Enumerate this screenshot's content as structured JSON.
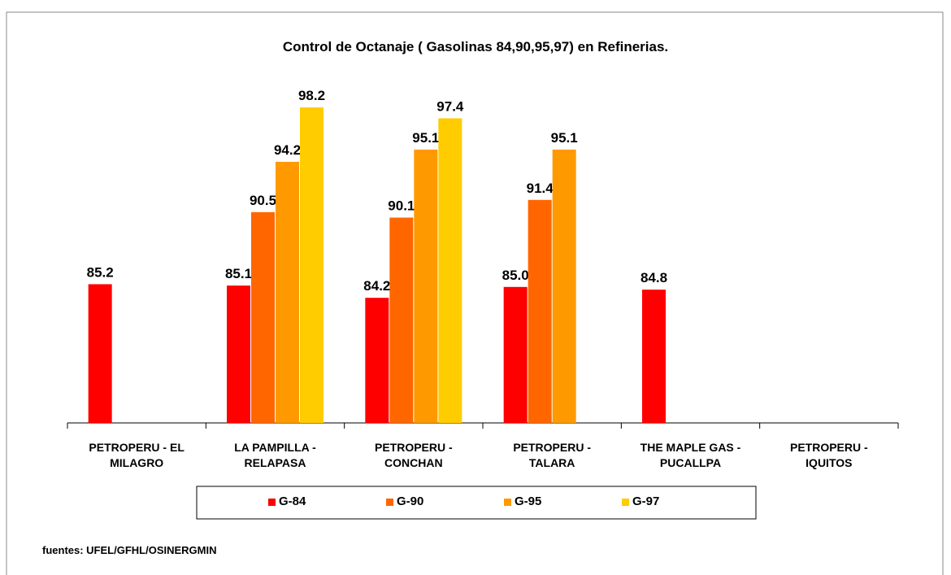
{
  "chart_data": {
    "type": "bar",
    "title": "Control de Octanaje ( Gasolinas 84,90,95,97) en Refinerias.",
    "categories": [
      "PETROPERU - EL MILAGRO",
      "LA PAMPILLA - RELAPASA",
      "PETROPERU - CONCHAN",
      "PETROPERU - TALARA",
      "THE MAPLE GAS - PUCALLPA",
      "PETROPERU - IQUITOS"
    ],
    "series": [
      {
        "name": "G-84",
        "color": "#ff0000",
        "values": [
          85.2,
          85.1,
          84.2,
          85.0,
          84.8,
          null
        ],
        "value_labels": [
          "85.2",
          "85.1",
          "84.2",
          "85.0",
          "84.8",
          null
        ]
      },
      {
        "name": "G-90",
        "color": "#ff6600",
        "values": [
          null,
          90.5,
          90.1,
          91.4,
          null,
          null
        ]
      },
      {
        "name": "G-95",
        "color": "#ff9900",
        "values": [
          null,
          94.2,
          95.1,
          95.1,
          null,
          null
        ]
      },
      {
        "name": "G-97",
        "color": "#ffcc00",
        "values": [
          null,
          98.2,
          97.4,
          null,
          null,
          null
        ]
      }
    ],
    "ylim": [
      75,
      100
    ],
    "legend": "bottom",
    "source": "fuentes: UFEL/GFHL/OSINERGMIN"
  }
}
